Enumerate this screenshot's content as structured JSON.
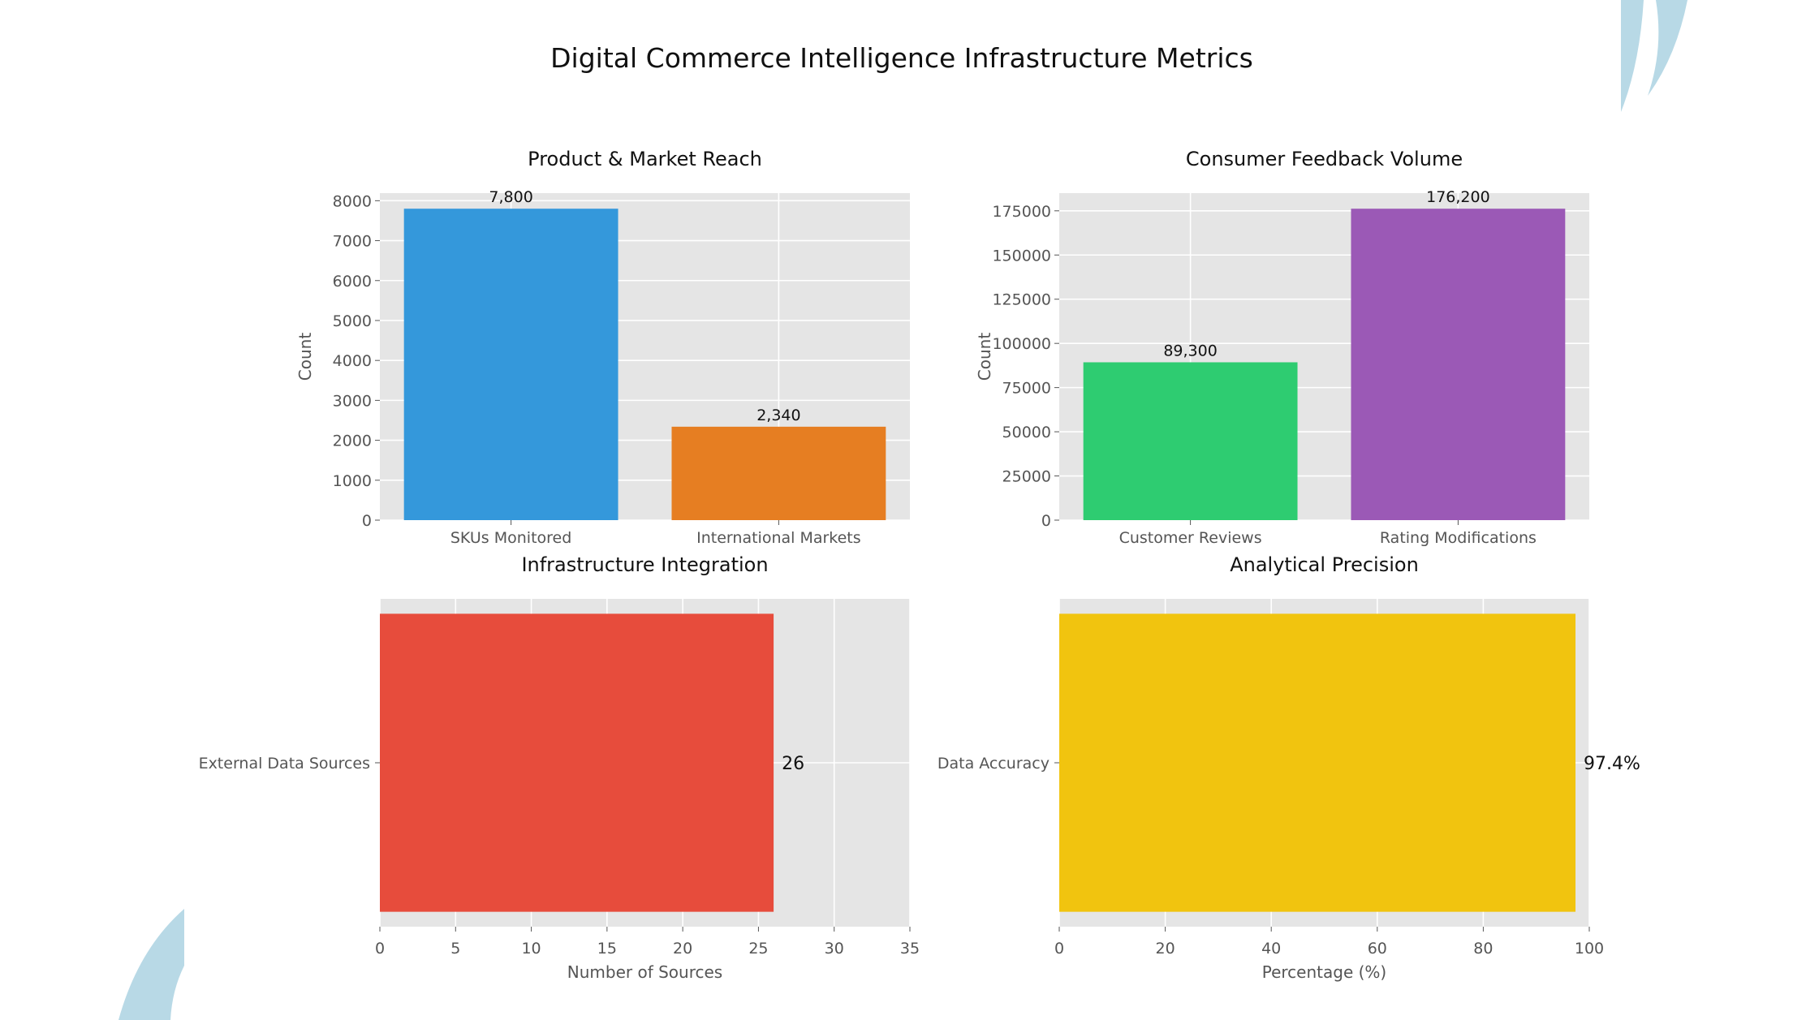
{
  "title": "Digital Commerce Intelligence Infrastructure Metrics",
  "decoration_color": "#b8d9e6",
  "chart_data": [
    {
      "type": "bar",
      "orientation": "vertical",
      "title": "Product & Market Reach",
      "xlabel": "",
      "ylabel": "Count",
      "categories": [
        "SKUs Monitored",
        "International Markets"
      ],
      "values": [
        7800,
        2340
      ],
      "data_labels": [
        "7,800",
        "2,340"
      ],
      "colors": [
        "#3498db",
        "#e67e22"
      ],
      "ylim": [
        0,
        8190
      ],
      "yticks": [
        0,
        1000,
        2000,
        3000,
        4000,
        5000,
        6000,
        7000,
        8000
      ],
      "grid": true
    },
    {
      "type": "bar",
      "orientation": "vertical",
      "title": "Consumer Feedback Volume",
      "xlabel": "",
      "ylabel": "Count",
      "categories": [
        "Customer Reviews",
        "Rating Modifications"
      ],
      "values": [
        89300,
        176200
      ],
      "data_labels": [
        "89,300",
        "176,200"
      ],
      "colors": [
        "#2ecc71",
        "#9b59b6"
      ],
      "ylim": [
        0,
        185010
      ],
      "yticks": [
        0,
        25000,
        50000,
        75000,
        100000,
        125000,
        150000,
        175000
      ],
      "grid": true
    },
    {
      "type": "bar",
      "orientation": "horizontal",
      "title": "Infrastructure Integration",
      "xlabel": "Number of Sources",
      "ylabel": "",
      "categories": [
        "External Data Sources"
      ],
      "values": [
        26
      ],
      "data_labels": [
        "26"
      ],
      "colors": [
        "#e74c3c"
      ],
      "xlim": [
        0,
        35
      ],
      "xticks": [
        0,
        5,
        10,
        15,
        20,
        25,
        30,
        35
      ],
      "grid": true
    },
    {
      "type": "bar",
      "orientation": "horizontal",
      "title": "Analytical Precision",
      "xlabel": "Percentage (%)",
      "ylabel": "",
      "categories": [
        "Data Accuracy"
      ],
      "values": [
        97.4
      ],
      "data_labels": [
        "97.4%"
      ],
      "colors": [
        "#f1c40f"
      ],
      "xlim": [
        0,
        100
      ],
      "xticks": [
        0,
        20,
        40,
        60,
        80,
        100
      ],
      "grid": true
    }
  ]
}
